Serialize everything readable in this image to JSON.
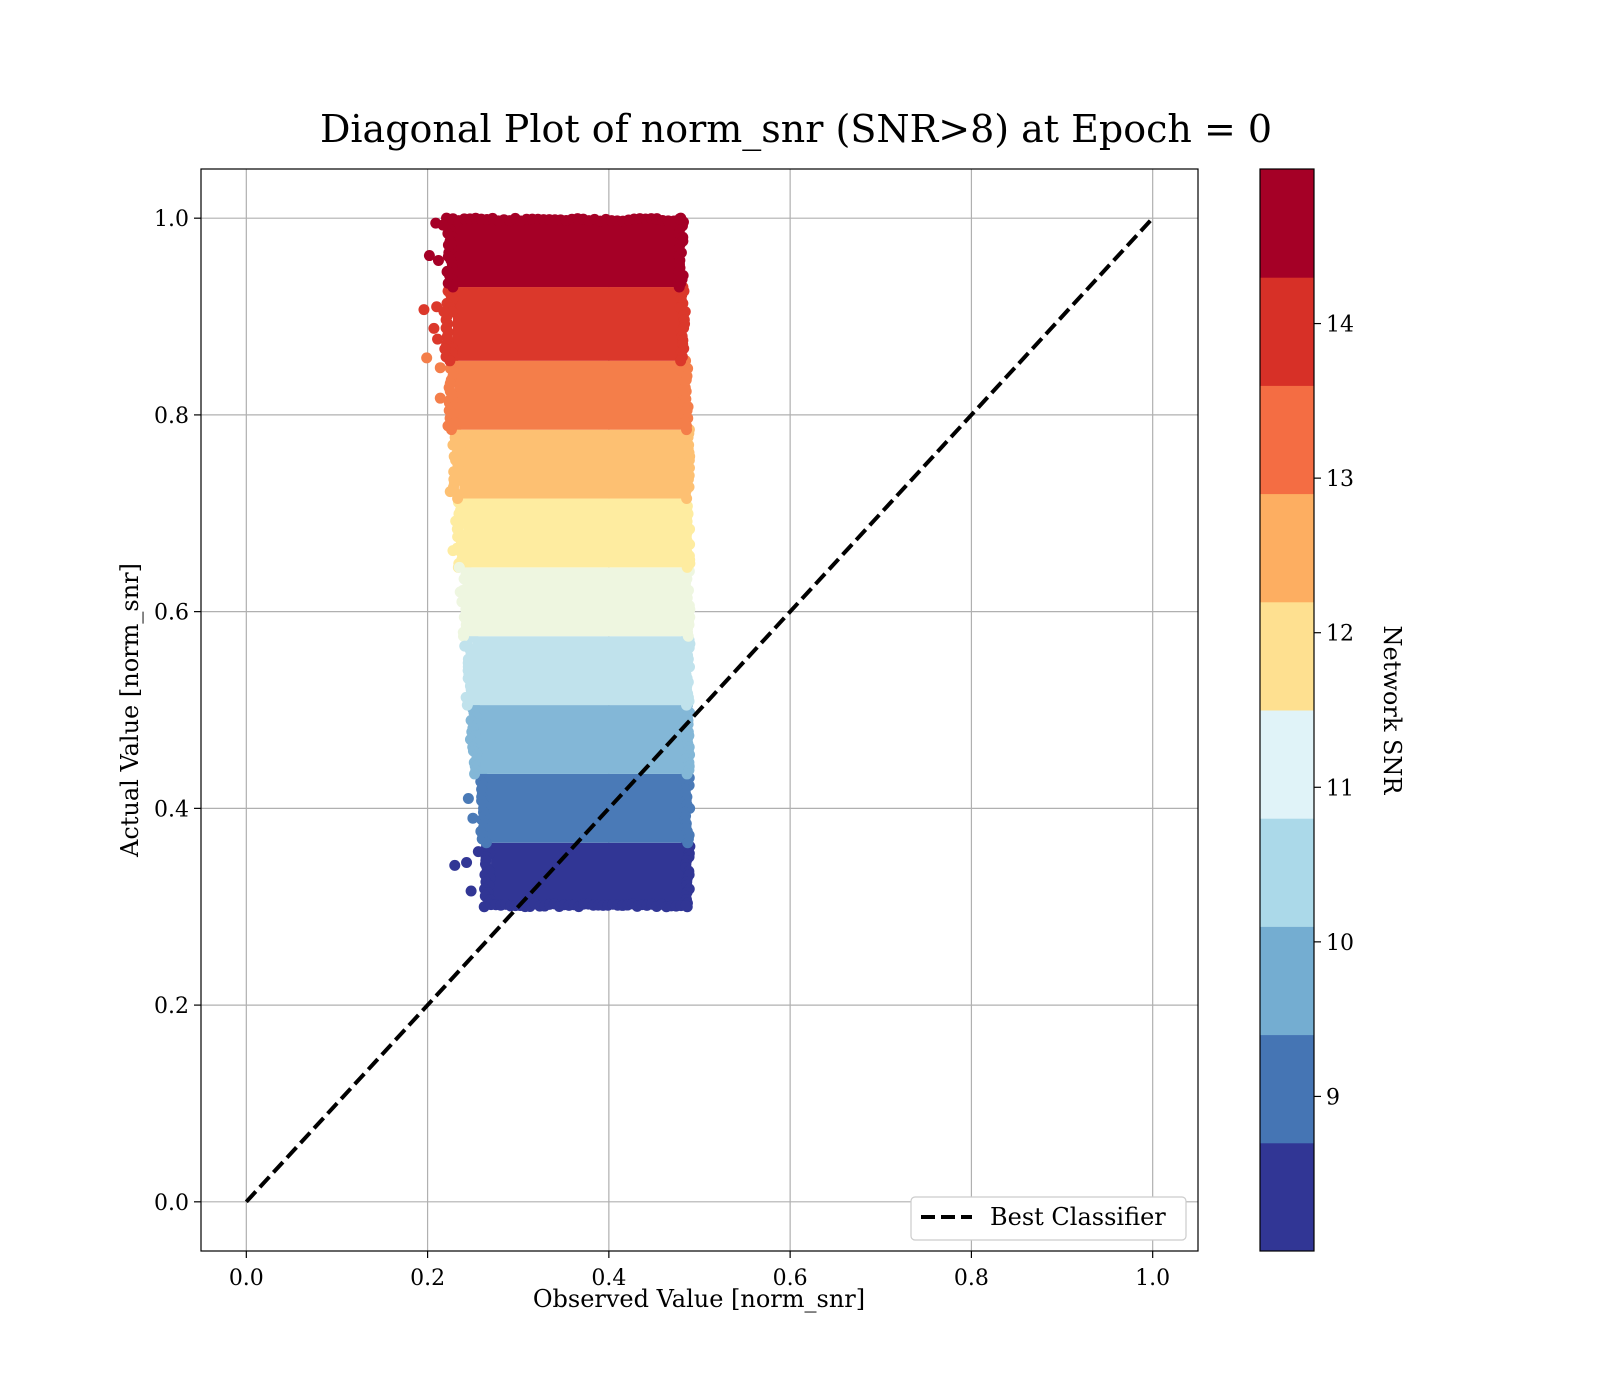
{
  "chart_data": {
    "type": "scatter",
    "title": "Diagonal Plot of norm_snr (SNR>8) at Epoch = 0",
    "xlabel": "Observed Value [norm_snr]",
    "ylabel": "Actual Value [norm_snr]",
    "xlim": [
      -0.05,
      1.05
    ],
    "ylim": [
      -0.05,
      1.05
    ],
    "xticks": [
      "0.0",
      "0.2",
      "0.4",
      "0.6",
      "0.8",
      "1.0"
    ],
    "yticks": [
      "0.0",
      "0.2",
      "0.4",
      "0.6",
      "0.8",
      "1.0"
    ],
    "grid": true,
    "legend": {
      "label": "Best Classifier",
      "placement": "lower-right"
    },
    "reference_line": {
      "x": [
        0,
        1
      ],
      "y": [
        0,
        1
      ],
      "style": "dashed",
      "color": "#000000"
    },
    "colorbar": {
      "label": "Network SNR",
      "range": [
        8.0,
        15.0
      ],
      "ticks": [
        "9",
        "10",
        "11",
        "12",
        "13",
        "14"
      ],
      "tick_values": [
        9,
        10,
        11,
        12,
        13,
        14
      ],
      "colors": [
        "#313695",
        "#4575b4",
        "#74add1",
        "#abd9e9",
        "#e0f3f8",
        "#fee090",
        "#fdae61",
        "#f46d43",
        "#d73027",
        "#a50026"
      ]
    },
    "bands": [
      {
        "snr_range": [
          8.0,
          8.7
        ],
        "y_range": [
          0.3,
          0.365
        ],
        "x_range": [
          0.27,
          0.485
        ],
        "color": "#313695"
      },
      {
        "snr_range": [
          8.7,
          9.4
        ],
        "y_range": [
          0.365,
          0.435
        ],
        "x_range": [
          0.265,
          0.485
        ],
        "color": "#4a7ab7"
      },
      {
        "snr_range": [
          9.4,
          10.1
        ],
        "y_range": [
          0.435,
          0.505
        ],
        "x_range": [
          0.255,
          0.485
        ],
        "color": "#83b7d7"
      },
      {
        "snr_range": [
          10.1,
          10.8
        ],
        "y_range": [
          0.505,
          0.575
        ],
        "x_range": [
          0.25,
          0.485
        ],
        "color": "#c0e2ec"
      },
      {
        "snr_range": [
          10.8,
          11.5
        ],
        "y_range": [
          0.575,
          0.645
        ],
        "x_range": [
          0.245,
          0.485
        ],
        "color": "#eef6e0"
      },
      {
        "snr_range": [
          11.5,
          12.2
        ],
        "y_range": [
          0.645,
          0.715
        ],
        "x_range": [
          0.24,
          0.485
        ],
        "color": "#feeca0"
      },
      {
        "snr_range": [
          12.2,
          12.9
        ],
        "y_range": [
          0.715,
          0.785
        ],
        "x_range": [
          0.235,
          0.485
        ],
        "color": "#fdc072"
      },
      {
        "snr_range": [
          12.9,
          13.6
        ],
        "y_range": [
          0.785,
          0.855
        ],
        "x_range": [
          0.23,
          0.483
        ],
        "color": "#f47e4a"
      },
      {
        "snr_range": [
          13.6,
          14.3
        ],
        "y_range": [
          0.855,
          0.93
        ],
        "x_range": [
          0.228,
          0.48
        ],
        "color": "#db382b"
      },
      {
        "snr_range": [
          14.3,
          15.0
        ],
        "y_range": [
          0.93,
          1.0
        ],
        "x_range": [
          0.228,
          0.478
        ],
        "color": "#a50026"
      }
    ],
    "outliers": [
      {
        "x": 0.23,
        "y": 0.342,
        "color": "#313695"
      },
      {
        "x": 0.243,
        "y": 0.345,
        "color": "#313695"
      },
      {
        "x": 0.248,
        "y": 0.316,
        "color": "#313695"
      },
      {
        "x": 0.256,
        "y": 0.356,
        "color": "#313695"
      },
      {
        "x": 0.25,
        "y": 0.39,
        "color": "#4a7ab7"
      },
      {
        "x": 0.245,
        "y": 0.41,
        "color": "#4a7ab7"
      },
      {
        "x": 0.241,
        "y": 0.565,
        "color": "#c0e2ec"
      },
      {
        "x": 0.236,
        "y": 0.62,
        "color": "#eef6e0"
      },
      {
        "x": 0.235,
        "y": 0.645,
        "color": "#eef6e0"
      },
      {
        "x": 0.228,
        "y": 0.662,
        "color": "#feeca0"
      },
      {
        "x": 0.231,
        "y": 0.692,
        "color": "#feeca0"
      },
      {
        "x": 0.225,
        "y": 0.722,
        "color": "#fdc072"
      },
      {
        "x": 0.232,
        "y": 0.737,
        "color": "#fdc072"
      },
      {
        "x": 0.236,
        "y": 0.768,
        "color": "#fdc072"
      },
      {
        "x": 0.23,
        "y": 0.792,
        "color": "#f47e4a"
      },
      {
        "x": 0.214,
        "y": 0.817,
        "color": "#f47e4a"
      },
      {
        "x": 0.225,
        "y": 0.832,
        "color": "#f47e4a"
      },
      {
        "x": 0.199,
        "y": 0.858,
        "color": "#f47e4a"
      },
      {
        "x": 0.214,
        "y": 0.848,
        "color": "#f47e4a"
      },
      {
        "x": 0.211,
        "y": 0.877,
        "color": "#db382b"
      },
      {
        "x": 0.219,
        "y": 0.867,
        "color": "#db382b"
      },
      {
        "x": 0.207,
        "y": 0.888,
        "color": "#db382b"
      },
      {
        "x": 0.196,
        "y": 0.907,
        "color": "#db382b"
      },
      {
        "x": 0.21,
        "y": 0.91,
        "color": "#db382b"
      },
      {
        "x": 0.218,
        "y": 0.905,
        "color": "#db382b"
      },
      {
        "x": 0.202,
        "y": 0.962,
        "color": "#a50026"
      },
      {
        "x": 0.212,
        "y": 0.957,
        "color": "#a50026"
      },
      {
        "x": 0.222,
        "y": 0.946,
        "color": "#a50026"
      },
      {
        "x": 0.209,
        "y": 0.995,
        "color": "#a50026"
      },
      {
        "x": 0.217,
        "y": 0.993,
        "color": "#a50026"
      },
      {
        "x": 0.226,
        "y": 0.974,
        "color": "#a50026"
      }
    ]
  }
}
